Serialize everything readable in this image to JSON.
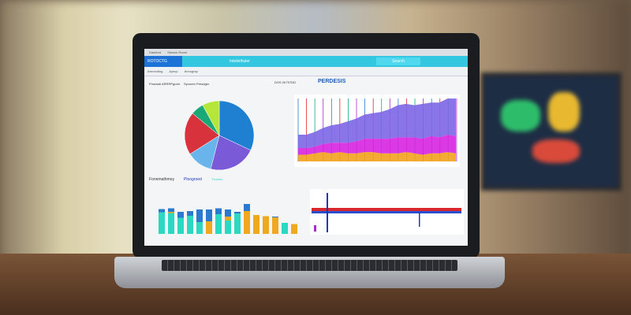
{
  "browser": {
    "tabs": [
      "Dashbrd",
      "Stweek Rueet"
    ]
  },
  "header": {
    "brand": "ROTOCTG",
    "title": "Inteliothuler",
    "search": "Search"
  },
  "toolbar": [
    "Armonding",
    "Aynup",
    "Annogray"
  ],
  "pie_panel": {
    "title": "Prsewstl ARRRPgurer",
    "subtitle": "Synoren Presdger"
  },
  "area_panel": {
    "title": "PERDESIS",
    "subtitle": "DOS 2K707DD"
  },
  "bar_panel": {
    "title": "Fonnmathmoy",
    "legend": [
      "Ploogroed",
      "Txmonn"
    ]
  },
  "colors": {
    "pie": [
      "#1f7fd0",
      "#7b5ad8",
      "#6ab4ec",
      "#d8323c",
      "#1aa876",
      "#b5e63a"
    ],
    "area": [
      "#f2a21e",
      "#d623e0",
      "#7d66e6"
    ],
    "bars": [
      "#2bd9c2",
      "#f0a81e",
      "#2a7ad0"
    ]
  },
  "chart_data": [
    {
      "type": "pie",
      "values": [
        32,
        22,
        12,
        20,
        6,
        8
      ]
    },
    {
      "type": "area",
      "x": [
        1,
        2,
        3,
        4,
        5,
        6,
        7,
        8,
        9,
        10,
        11,
        12,
        13,
        14,
        15,
        16,
        17,
        18,
        19,
        20
      ],
      "series": [
        {
          "values": [
            5,
            5,
            6,
            7,
            6,
            7,
            6,
            6,
            7,
            7,
            6,
            6,
            6,
            7,
            6,
            5,
            6,
            6,
            7,
            6
          ]
        },
        {
          "values": [
            5,
            5,
            5,
            6,
            8,
            7,
            8,
            9,
            10,
            10,
            11,
            11,
            12,
            11,
            12,
            12,
            13,
            12,
            13,
            13
          ]
        },
        {
          "values": [
            10,
            10,
            11,
            12,
            13,
            14,
            16,
            17,
            18,
            19,
            20,
            22,
            24,
            25,
            24,
            26,
            25,
            26,
            27,
            28
          ]
        }
      ]
    },
    {
      "type": "bar",
      "series": [
        {
          "values": [
            55,
            53,
            41,
            46,
            30,
            0,
            50,
            34,
            52,
            0,
            0,
            0,
            0,
            28,
            0
          ]
        },
        {
          "values": [
            0,
            3,
            0,
            0,
            0,
            32,
            0,
            10,
            0,
            58,
            48,
            45,
            42,
            0,
            25
          ]
        },
        {
          "values": [
            8,
            9,
            15,
            12,
            32,
            30,
            15,
            18,
            4,
            18,
            0,
            0,
            2,
            0,
            0
          ]
        }
      ]
    }
  ]
}
